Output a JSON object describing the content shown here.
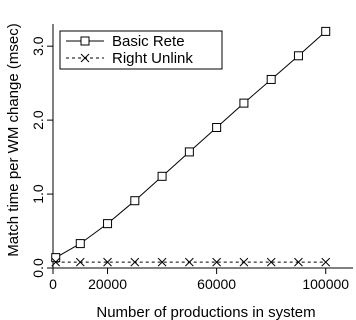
{
  "chart_data": {
    "type": "line",
    "title": "",
    "xlabel": "Number of productions in system",
    "ylabel": "Match time per WM change (msec)",
    "xlim": [
      0,
      110000
    ],
    "ylim": [
      0,
      3.3
    ],
    "xticks": [
      0,
      20000,
      60000,
      100000
    ],
    "xtick_labels": [
      "0",
      "20000",
      "60000",
      "100000"
    ],
    "yticks": [
      0.0,
      1.0,
      2.0,
      3.0
    ],
    "ytick_labels": [
      "0.0",
      "1.0",
      "2.0",
      "3.0"
    ],
    "grid": false,
    "legend": "top-left",
    "x": [
      1000,
      10000,
      20000,
      30000,
      40000,
      50000,
      60000,
      70000,
      80000,
      90000,
      100000
    ],
    "series": [
      {
        "name": "Basic Rete",
        "marker": "square",
        "line_style": "solid",
        "color": "#000000",
        "values": [
          0.14,
          0.33,
          0.6,
          0.91,
          1.24,
          1.57,
          1.9,
          2.23,
          2.55,
          2.87,
          3.2
        ]
      },
      {
        "name": "Right Unlink",
        "marker": "x",
        "line_style": "dashed",
        "color": "#000000",
        "values": [
          0.08,
          0.08,
          0.08,
          0.08,
          0.08,
          0.08,
          0.08,
          0.08,
          0.08,
          0.08,
          0.08
        ]
      }
    ]
  }
}
